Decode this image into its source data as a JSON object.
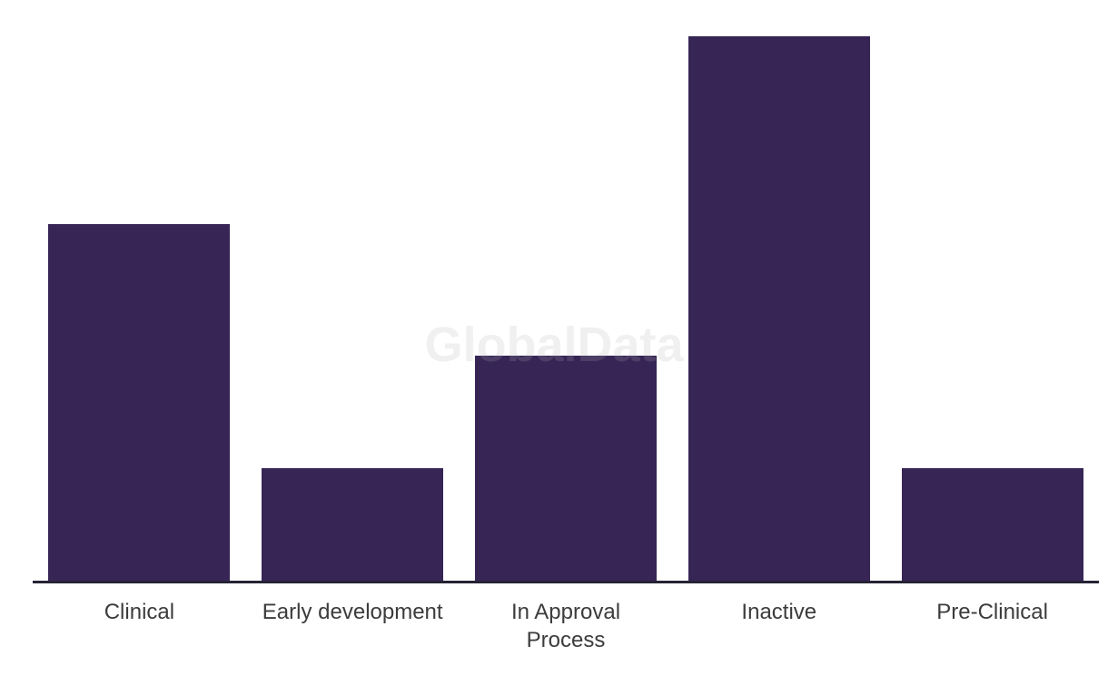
{
  "watermark_text": "GlobalData",
  "colors": {
    "background": "#FFFFFF",
    "bar": "#362555",
    "axis_line": "#262335",
    "tick_label": "#3C3C3C",
    "watermark": "#B2B2B2"
  },
  "chart_data": {
    "type": "bar",
    "title": "",
    "xlabel": "",
    "ylabel": "",
    "categories": [
      "Clinical",
      "Early development",
      "In Approval Process",
      "Inactive",
      "Pre-Clinical"
    ],
    "tick_labels": [
      "Clinical",
      "Early development",
      "In Approval\nProcess",
      "Inactive",
      "Pre-Clinical"
    ],
    "values": [
      19,
      6,
      12,
      29,
      6
    ],
    "ylim": [
      0,
      29
    ],
    "grid": false,
    "legend": false,
    "y_axis_visible": false,
    "x_axis_visible": true,
    "watermark": "GlobalData"
  }
}
